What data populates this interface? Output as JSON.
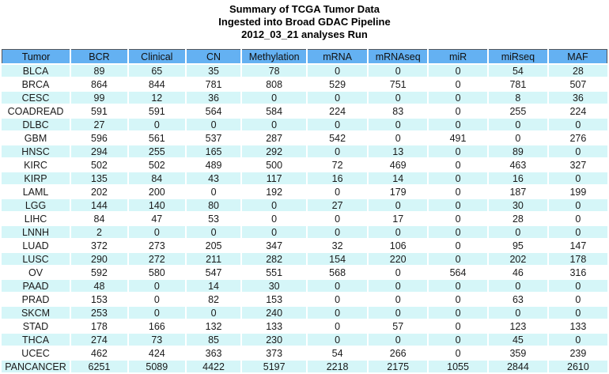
{
  "title_lines": [
    "Summary of TCGA Tumor Data",
    "Ingested into Broad GDAC Pipeline",
    "2012_03_21 analyses Run"
  ],
  "chart_data": {
    "type": "table",
    "title": "Summary of TCGA Tumor Data Ingested into Broad GDAC Pipeline 2012_03_21 analyses Run",
    "columns": [
      "Tumor",
      "BCR",
      "Clinical",
      "CN",
      "Methylation",
      "mRNA",
      "mRNAseq",
      "miR",
      "miRseq",
      "MAF"
    ],
    "rows": [
      [
        "BLCA",
        89,
        65,
        35,
        78,
        0,
        0,
        0,
        54,
        28
      ],
      [
        "BRCA",
        864,
        844,
        781,
        808,
        529,
        751,
        0,
        781,
        507
      ],
      [
        "CESC",
        99,
        12,
        36,
        0,
        0,
        0,
        0,
        8,
        36
      ],
      [
        "COADREAD",
        591,
        591,
        564,
        584,
        224,
        83,
        0,
        255,
        224
      ],
      [
        "DLBC",
        27,
        0,
        0,
        0,
        0,
        0,
        0,
        0,
        0
      ],
      [
        "GBM",
        596,
        561,
        537,
        287,
        542,
        0,
        491,
        0,
        276
      ],
      [
        "HNSC",
        294,
        255,
        165,
        292,
        0,
        13,
        0,
        89,
        0
      ],
      [
        "KIRC",
        502,
        502,
        489,
        500,
        72,
        469,
        0,
        463,
        327
      ],
      [
        "KIRP",
        135,
        84,
        43,
        117,
        16,
        14,
        0,
        16,
        0
      ],
      [
        "LAML",
        202,
        200,
        0,
        192,
        0,
        179,
        0,
        187,
        199
      ],
      [
        "LGG",
        144,
        140,
        80,
        0,
        27,
        0,
        0,
        30,
        0
      ],
      [
        "LIHC",
        84,
        47,
        53,
        0,
        0,
        17,
        0,
        28,
        0
      ],
      [
        "LNNH",
        2,
        0,
        0,
        0,
        0,
        0,
        0,
        0,
        0
      ],
      [
        "LUAD",
        372,
        273,
        205,
        347,
        32,
        106,
        0,
        95,
        147
      ],
      [
        "LUSC",
        290,
        272,
        211,
        282,
        154,
        220,
        0,
        202,
        178
      ],
      [
        "OV",
        592,
        580,
        547,
        551,
        568,
        0,
        564,
        46,
        316
      ],
      [
        "PAAD",
        48,
        0,
        14,
        30,
        0,
        0,
        0,
        0,
        0
      ],
      [
        "PRAD",
        153,
        0,
        82,
        153,
        0,
        0,
        0,
        63,
        0
      ],
      [
        "SKCM",
        253,
        0,
        0,
        240,
        0,
        0,
        0,
        0,
        0
      ],
      [
        "STAD",
        178,
        166,
        132,
        133,
        0,
        57,
        0,
        123,
        133
      ],
      [
        "THCA",
        274,
        73,
        85,
        230,
        0,
        0,
        0,
        45,
        0
      ],
      [
        "UCEC",
        462,
        424,
        363,
        373,
        54,
        266,
        0,
        359,
        239
      ],
      [
        "PANCANCER",
        6251,
        5089,
        4422,
        5197,
        2218,
        2175,
        1055,
        2844,
        2610
      ]
    ],
    "layout_hints": {
      "header_bg": "#64b1f2",
      "stripe_bg": "#d5f6f8",
      "plain_bg": "#ffffff",
      "header_border": "#55565a",
      "striping": "first data row cyan, then alternating; totals row cyan"
    }
  }
}
